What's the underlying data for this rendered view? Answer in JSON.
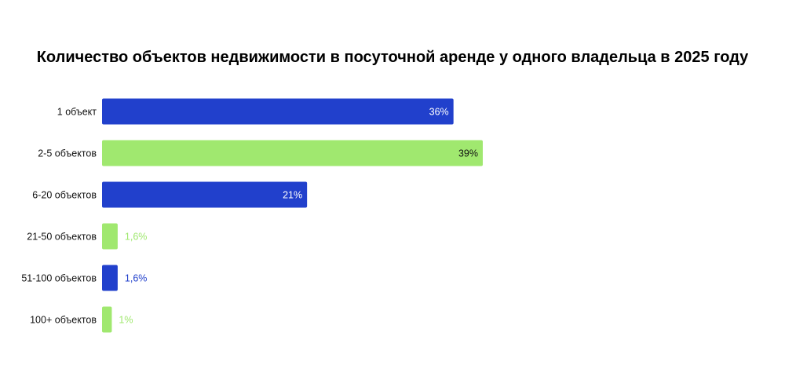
{
  "chart_data": {
    "type": "bar",
    "orientation": "horizontal",
    "title": "Количество объектов недвижимости в посуточной аренде у одного владельца в 2025 году",
    "categories": [
      "1 объект",
      "2-5 объектов",
      "6-20 объектов",
      "21-50 объектов",
      "51-100 объектов",
      "100+ объектов"
    ],
    "values": [
      36,
      39,
      21,
      1.6,
      1.6,
      1
    ],
    "data_labels": [
      "36%",
      "39%",
      "21%",
      "1,6%",
      "1,6%",
      "1%"
    ],
    "bar_colors": [
      "#2140CC",
      "#A0E86F",
      "#2140CC",
      "#A0E86F",
      "#2140CC",
      "#A0E86F"
    ],
    "xlim": [
      0,
      39
    ],
    "grid": false,
    "legend": "none",
    "xlabel": "",
    "ylabel": ""
  }
}
